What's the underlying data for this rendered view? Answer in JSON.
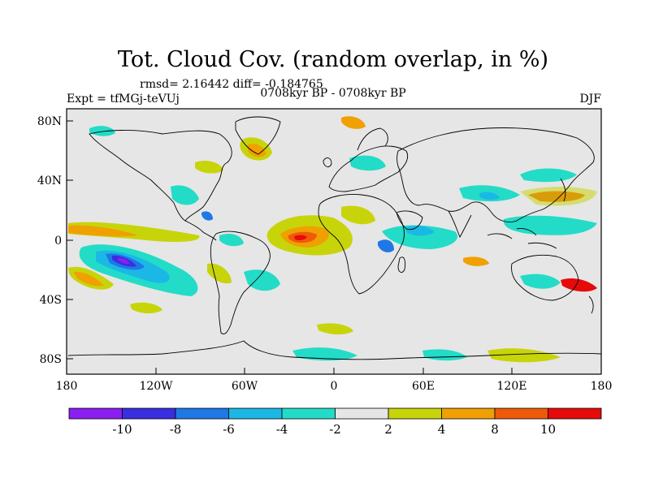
{
  "title": "Tot. Cloud Cov. (random overlap, in %)",
  "stats": "rmsd= 2.16442 diff= -0.184765",
  "experiment": "Expt = tfMGj-teVUj",
  "period": "0708kyr BP - 0708kyr BP",
  "season": "DJF",
  "axes": {
    "x_ticks": [
      "180",
      "120W",
      "60W",
      "0",
      "60E",
      "120E",
      "180"
    ],
    "y_ticks": [
      "80N",
      "40N",
      "0",
      "40S",
      "80S"
    ]
  },
  "colorbar": {
    "labels": [
      "-10",
      "-8",
      "-6",
      "-4",
      "-2",
      "2",
      "4",
      "8",
      "10"
    ],
    "colors": [
      "#8a1ff0",
      "#3a2fe0",
      "#1f78e6",
      "#1bb8e6",
      "#22dcc8",
      "#e6e6e6",
      "#c8d40a",
      "#f0a000",
      "#ee5a0a",
      "#e60a0a"
    ]
  },
  "colors": {
    "land_background": "#e6e6e6",
    "coastline": "#000000"
  }
}
